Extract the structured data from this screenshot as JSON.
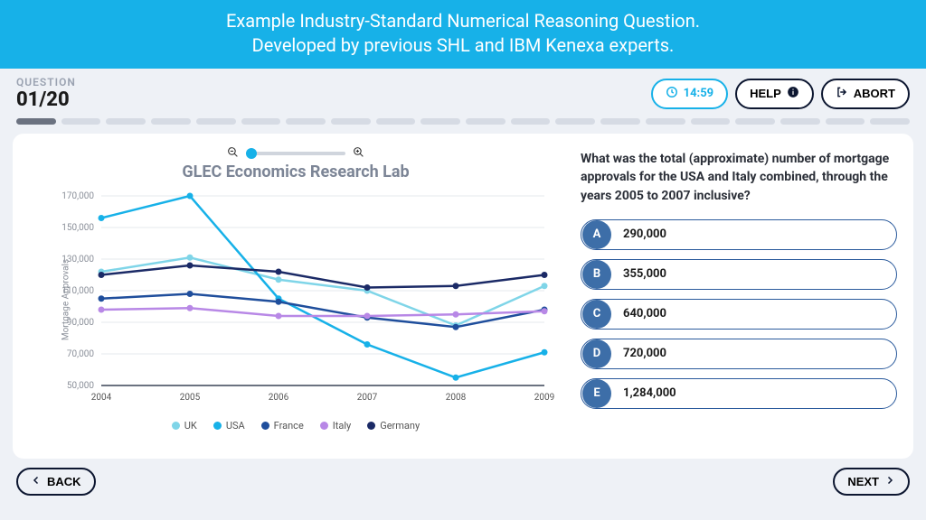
{
  "banner": {
    "line1": "Example Industry-Standard Numerical Reasoning Question.",
    "line2": "Developed by previous SHL and IBM Kenexa experts."
  },
  "question_meta": {
    "label": "QUESTION",
    "counter": "01/20"
  },
  "controls": {
    "timer": "14:59",
    "help": "HELP",
    "abort": "ABORT",
    "back": "BACK",
    "next": "NEXT"
  },
  "progress": {
    "total": 20,
    "current": 1
  },
  "chart": {
    "type": "line",
    "title": "GLEC Economics Research Lab",
    "ylabel": "Mortgage Approvals",
    "x_categories": [
      "2004",
      "2005",
      "2006",
      "2007",
      "2008",
      "2009"
    ],
    "ylim": [
      50000,
      170000
    ],
    "ytick_step": 20000,
    "yticks": [
      "50,000",
      "70,000",
      "90,000",
      "110,000",
      "130,000",
      "150,000",
      "170,000"
    ],
    "background_color": "#ffffff",
    "grid_color": "#e5e8ee",
    "axis_color": "#6b7280",
    "tick_fontsize": 10,
    "title_fontsize": 18,
    "line_width": 2.5,
    "marker_radius": 3.5,
    "series": [
      {
        "name": "UK",
        "color": "#7fd5e8",
        "values": [
          122000,
          131000,
          117000,
          110000,
          88000,
          113000
        ]
      },
      {
        "name": "USA",
        "color": "#17b1e8",
        "values": [
          156000,
          170000,
          105000,
          76000,
          55000,
          71000
        ]
      },
      {
        "name": "France",
        "color": "#1f4e9c",
        "values": [
          105000,
          108000,
          103000,
          93000,
          87000,
          98000
        ]
      },
      {
        "name": "Italy",
        "color": "#b888e6",
        "values": [
          98000,
          99000,
          94000,
          94000,
          95000,
          97000
        ]
      },
      {
        "name": "Germany",
        "color": "#1b2a66",
        "values": [
          120000,
          126000,
          122000,
          112000,
          113000,
          120000
        ]
      }
    ]
  },
  "question": {
    "text": "What was the total (approximate) number of mortgage approvals for the USA and Italy combined, through the years 2005 to 2007 inclusive?",
    "options": [
      {
        "letter": "A",
        "value": "290,000"
      },
      {
        "letter": "B",
        "value": "355,000"
      },
      {
        "letter": "C",
        "value": "640,000"
      },
      {
        "letter": "D",
        "value": "720,000"
      },
      {
        "letter": "E",
        "value": "1,284,000"
      }
    ]
  }
}
